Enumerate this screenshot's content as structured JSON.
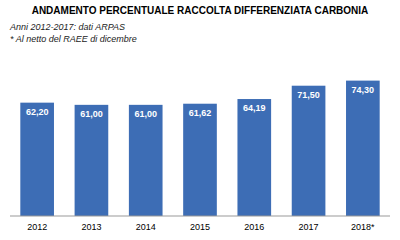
{
  "chart_data": {
    "type": "bar",
    "title": "ANDAMENTO PERCENTUALE RACCOLTA DIFFERENZIATA CARBONIA",
    "subtitle": "Anni 2012-2017: dati ARPAS",
    "annotations": [
      "* Al netto del RAEE di dicembre"
    ],
    "categories": [
      "2012",
      "2013",
      "2014",
      "2015",
      "2016",
      "2017",
      "2018*"
    ],
    "values": [
      62.2,
      61.0,
      61.0,
      61.62,
      64.19,
      71.5,
      74.3
    ],
    "value_labels": [
      "62,20",
      "61,00",
      "61,00",
      "61,62",
      "64,19",
      "71,50",
      "74,30"
    ],
    "data_labels": true,
    "color": "#3D6DB5",
    "ylim": [
      0,
      90
    ],
    "tick_labels": "x",
    "grid": false
  }
}
